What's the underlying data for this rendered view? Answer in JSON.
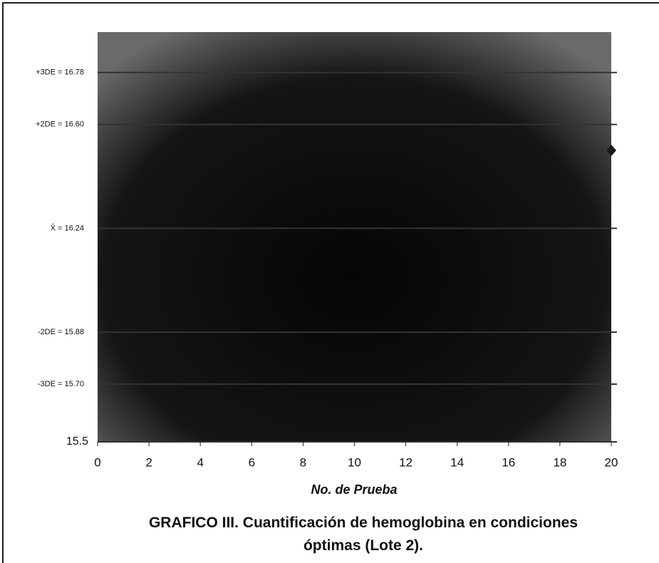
{
  "chart_data": {
    "type": "scatter",
    "xlabel": "No. de Prueba",
    "caption": "GRAFICO III. Cuantificación de hemoglobina en condiciones óptimas (Lote 2).",
    "series": [
      {
        "color": "#1a1a1a",
        "x": [
          20
        ],
        "values": [
          16.51
        ]
      }
    ],
    "xlim": [
      0,
      20
    ],
    "xticks": [
      0,
      2,
      4,
      6,
      8,
      10,
      12,
      14,
      16,
      18,
      20
    ],
    "ylim": [
      15.5,
      16.92
    ],
    "yticks": [
      15.5,
      {
        "value": 15.7,
        "label": "-3DE = 15.70"
      },
      {
        "value": 15.88,
        "label": "-2DE = 15.88"
      },
      {
        "value": 16.24,
        "label": "X̄ = 16.24"
      },
      {
        "value": 16.6,
        "label": "+2DE = 16.60"
      },
      {
        "value": 16.78,
        "label": "+3DE = 16.78"
      }
    ],
    "grid": true
  }
}
